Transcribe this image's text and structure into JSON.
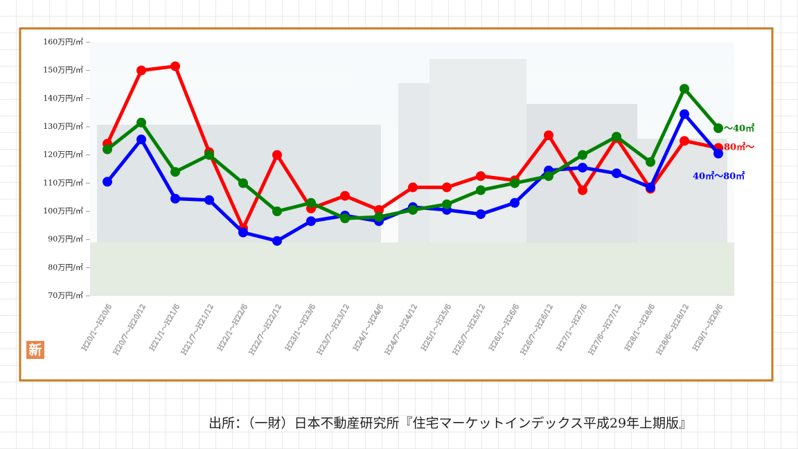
{
  "chart_data": {
    "type": "line",
    "categories": [
      "H20/1～H20/6",
      "H20/7～H20/12",
      "H21/1～H21/6",
      "H21/7～H21/12",
      "H22/1～H22/6",
      "H22/7～H22/12",
      "H23/1～H23/6",
      "H23/7～H23/12",
      "H24/1～H24/6",
      "H24/7～H24/12",
      "H25/1～H25/6",
      "H25/7～H25/12",
      "H26/1～H26/6",
      "H26/7～H26/12",
      "H27/1～H27/6",
      "H27/6～H27/12",
      "H28/1～H28/6",
      "H28/6～H28/12",
      "H29/1～H29/6"
    ],
    "series": [
      {
        "name": "80㎡～",
        "color": "#ff0000",
        "values": [
          124,
          150,
          151.5,
          121,
          94,
          120,
          101,
          105.5,
          100.5,
          108.5,
          108.5,
          112.5,
          111,
          127,
          107.5,
          126,
          108,
          125,
          122.5
        ]
      },
      {
        "name": "40㎡～80㎡",
        "color": "#0000ff",
        "values": [
          110.5,
          125.5,
          104.5,
          104,
          92.5,
          89.5,
          96.5,
          98.5,
          96.5,
          101.5,
          100.5,
          99,
          103,
          114.5,
          115.5,
          113.5,
          108.5,
          134.5,
          120.5
        ]
      },
      {
        "name": "～40㎡",
        "color": "#008000",
        "values": [
          122,
          131.5,
          114,
          120,
          110,
          100,
          103,
          97.5,
          98,
          100.5,
          102.5,
          107.5,
          110,
          112.5,
          120,
          126.5,
          117.5,
          143.5,
          129.5
        ]
      }
    ],
    "ylim": [
      70,
      160
    ],
    "yticks": [
      {
        "value": 70,
        "label": "70万円/㎡"
      },
      {
        "value": 80,
        "label": "80万円/㎡"
      },
      {
        "value": 90,
        "label": "90万円/㎡"
      },
      {
        "value": 100,
        "label": "100万円/㎡"
      },
      {
        "value": 110,
        "label": "110万円/㎡"
      },
      {
        "value": 120,
        "label": "120万円/㎡"
      },
      {
        "value": 130,
        "label": "130万円/㎡"
      },
      {
        "value": 140,
        "label": "140万円/㎡"
      },
      {
        "value": 150,
        "label": "150万円/㎡"
      },
      {
        "value": 160,
        "label": "160万円/㎡"
      }
    ],
    "badge": "新",
    "source": "出所：（一財）日本不動産研究所『住宅マーケットインデックス平成29年上期版』"
  }
}
